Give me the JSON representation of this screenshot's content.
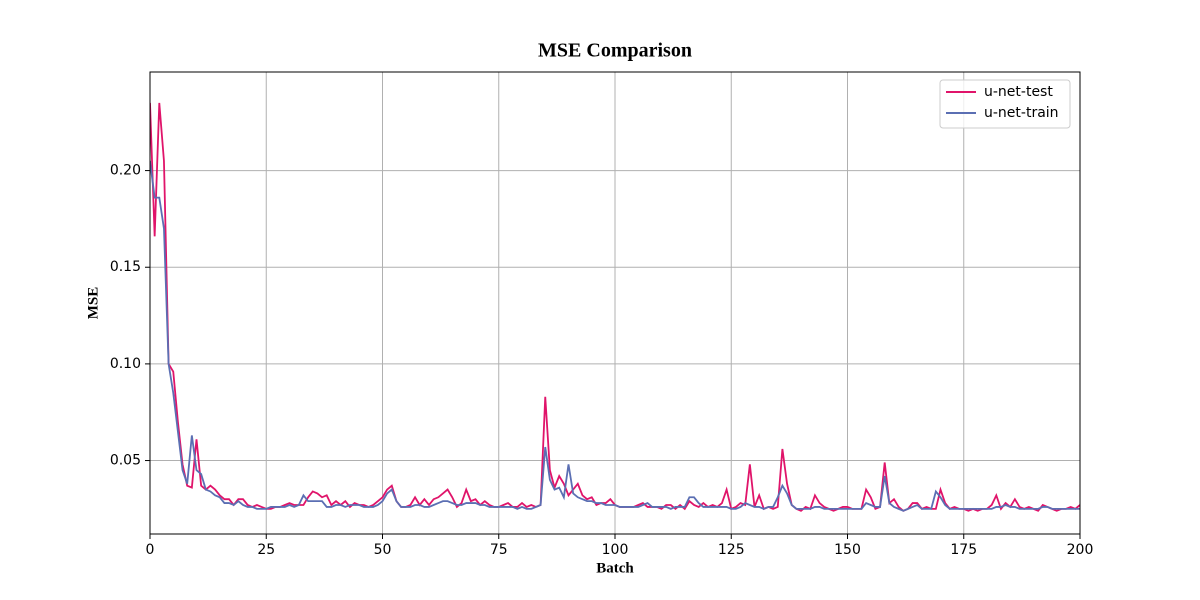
{
  "chart_data": {
    "type": "line",
    "title": "MSE Comparison",
    "x_label": "Batch",
    "y_label": "MSE",
    "x": [
      0,
      1,
      2,
      3,
      4,
      5,
      6,
      7,
      8,
      9,
      10,
      11,
      12,
      13,
      14,
      15,
      16,
      17,
      18,
      19,
      20,
      21,
      22,
      23,
      24,
      25,
      26,
      27,
      28,
      29,
      30,
      31,
      32,
      33,
      34,
      35,
      36,
      37,
      38,
      39,
      40,
      41,
      42,
      43,
      44,
      45,
      46,
      47,
      48,
      49,
      50,
      51,
      52,
      53,
      54,
      55,
      56,
      57,
      58,
      59,
      60,
      61,
      62,
      63,
      64,
      65,
      66,
      67,
      68,
      69,
      70,
      71,
      72,
      73,
      74,
      75,
      76,
      77,
      78,
      79,
      80,
      81,
      82,
      83,
      84,
      85,
      86,
      87,
      88,
      89,
      90,
      91,
      92,
      93,
      94,
      95,
      96,
      97,
      98,
      99,
      100,
      101,
      102,
      103,
      104,
      105,
      106,
      107,
      108,
      109,
      110,
      111,
      112,
      113,
      114,
      115,
      116,
      117,
      118,
      119,
      120,
      121,
      122,
      123,
      124,
      125,
      126,
      127,
      128,
      129,
      130,
      131,
      132,
      133,
      134,
      135,
      136,
      137,
      138,
      139,
      140,
      141,
      142,
      143,
      144,
      145,
      146,
      147,
      148,
      149,
      150,
      151,
      152,
      153,
      154,
      155,
      156,
      157,
      158,
      159,
      160,
      161,
      162,
      163,
      164,
      165,
      166,
      167,
      168,
      169,
      170,
      171,
      172,
      173,
      174,
      175,
      176,
      177,
      178,
      179,
      180,
      181,
      182,
      183,
      184,
      185,
      186,
      187,
      188,
      189,
      190,
      191,
      192,
      193,
      194,
      195,
      196,
      197,
      198,
      199,
      200
    ],
    "series": [
      {
        "name": "u-net-test",
        "color": "#e0146a",
        "values": [
          0.235,
          0.166,
          0.235,
          0.205,
          0.1,
          0.096,
          0.07,
          0.048,
          0.037,
          0.036,
          0.061,
          0.037,
          0.035,
          0.037,
          0.035,
          0.032,
          0.03,
          0.03,
          0.027,
          0.03,
          0.03,
          0.027,
          0.026,
          0.027,
          0.026,
          0.025,
          0.025,
          0.026,
          0.026,
          0.027,
          0.028,
          0.027,
          0.027,
          0.027,
          0.031,
          0.034,
          0.033,
          0.031,
          0.032,
          0.027,
          0.029,
          0.027,
          0.029,
          0.026,
          0.028,
          0.027,
          0.027,
          0.026,
          0.027,
          0.029,
          0.031,
          0.035,
          0.037,
          0.029,
          0.026,
          0.026,
          0.027,
          0.031,
          0.027,
          0.03,
          0.027,
          0.03,
          0.031,
          0.033,
          0.035,
          0.031,
          0.026,
          0.028,
          0.035,
          0.029,
          0.03,
          0.027,
          0.029,
          0.027,
          0.026,
          0.026,
          0.027,
          0.028,
          0.026,
          0.026,
          0.028,
          0.026,
          0.027,
          0.026,
          0.027,
          0.083,
          0.045,
          0.036,
          0.042,
          0.038,
          0.032,
          0.035,
          0.038,
          0.032,
          0.03,
          0.031,
          0.027,
          0.028,
          0.028,
          0.03,
          0.027,
          0.026,
          0.026,
          0.026,
          0.026,
          0.027,
          0.028,
          0.026,
          0.026,
          0.026,
          0.025,
          0.027,
          0.027,
          0.025,
          0.027,
          0.025,
          0.029,
          0.027,
          0.026,
          0.028,
          0.026,
          0.027,
          0.026,
          0.028,
          0.035,
          0.025,
          0.026,
          0.028,
          0.027,
          0.048,
          0.026,
          0.032,
          0.025,
          0.026,
          0.025,
          0.026,
          0.056,
          0.038,
          0.027,
          0.025,
          0.024,
          0.026,
          0.025,
          0.032,
          0.028,
          0.026,
          0.025,
          0.024,
          0.025,
          0.026,
          0.026,
          0.025,
          0.025,
          0.025,
          0.035,
          0.031,
          0.025,
          0.026,
          0.049,
          0.028,
          0.03,
          0.026,
          0.024,
          0.025,
          0.028,
          0.028,
          0.025,
          0.026,
          0.025,
          0.025,
          0.035,
          0.028,
          0.025,
          0.026,
          0.025,
          0.025,
          0.024,
          0.025,
          0.024,
          0.025,
          0.025,
          0.027,
          0.032,
          0.025,
          0.028,
          0.026,
          0.03,
          0.026,
          0.025,
          0.026,
          0.025,
          0.024,
          0.027,
          0.026,
          0.025,
          0.024,
          0.025,
          0.025,
          0.026,
          0.025,
          0.027
        ]
      },
      {
        "name": "u-net-train",
        "color": "#5b6fb3",
        "values": [
          0.205,
          0.186,
          0.186,
          0.17,
          0.1,
          0.085,
          0.065,
          0.045,
          0.038,
          0.063,
          0.045,
          0.043,
          0.035,
          0.034,
          0.032,
          0.031,
          0.028,
          0.028,
          0.027,
          0.029,
          0.027,
          0.026,
          0.026,
          0.025,
          0.025,
          0.025,
          0.026,
          0.026,
          0.026,
          0.026,
          0.027,
          0.026,
          0.027,
          0.032,
          0.029,
          0.029,
          0.029,
          0.029,
          0.026,
          0.026,
          0.027,
          0.027,
          0.026,
          0.027,
          0.027,
          0.027,
          0.026,
          0.026,
          0.026,
          0.027,
          0.029,
          0.033,
          0.035,
          0.029,
          0.026,
          0.026,
          0.026,
          0.027,
          0.027,
          0.026,
          0.026,
          0.027,
          0.028,
          0.029,
          0.029,
          0.028,
          0.027,
          0.027,
          0.028,
          0.028,
          0.028,
          0.027,
          0.027,
          0.026,
          0.026,
          0.026,
          0.026,
          0.026,
          0.026,
          0.025,
          0.026,
          0.025,
          0.025,
          0.026,
          0.027,
          0.057,
          0.04,
          0.035,
          0.036,
          0.031,
          0.048,
          0.033,
          0.031,
          0.03,
          0.029,
          0.029,
          0.028,
          0.028,
          0.027,
          0.027,
          0.027,
          0.026,
          0.026,
          0.026,
          0.026,
          0.026,
          0.027,
          0.028,
          0.026,
          0.026,
          0.026,
          0.026,
          0.025,
          0.026,
          0.026,
          0.026,
          0.031,
          0.031,
          0.028,
          0.026,
          0.026,
          0.026,
          0.026,
          0.026,
          0.026,
          0.025,
          0.025,
          0.026,
          0.028,
          0.027,
          0.026,
          0.026,
          0.025,
          0.026,
          0.026,
          0.031,
          0.037,
          0.033,
          0.027,
          0.025,
          0.025,
          0.025,
          0.025,
          0.026,
          0.026,
          0.025,
          0.025,
          0.025,
          0.025,
          0.025,
          0.025,
          0.025,
          0.025,
          0.025,
          0.028,
          0.027,
          0.026,
          0.026,
          0.042,
          0.028,
          0.026,
          0.025,
          0.024,
          0.025,
          0.026,
          0.027,
          0.025,
          0.025,
          0.025,
          0.034,
          0.031,
          0.027,
          0.025,
          0.025,
          0.025,
          0.025,
          0.025,
          0.025,
          0.025,
          0.025,
          0.025,
          0.025,
          0.026,
          0.026,
          0.027,
          0.026,
          0.026,
          0.025,
          0.025,
          0.025,
          0.025,
          0.025,
          0.026,
          0.026,
          0.025,
          0.025,
          0.025,
          0.025,
          0.025,
          0.025,
          0.025
        ]
      }
    ],
    "xlim": [
      0,
      200
    ],
    "xticks": [
      0,
      25,
      50,
      75,
      100,
      125,
      150,
      175,
      200
    ],
    "ylim": [
      0.012,
      0.251
    ],
    "yticks": [
      0.05,
      {
        "value": 0.1,
        "label": "0.10"
      },
      0.15,
      {
        "value": 0.2,
        "label": "0.20"
      }
    ],
    "grid": true,
    "legend": "upper right"
  }
}
